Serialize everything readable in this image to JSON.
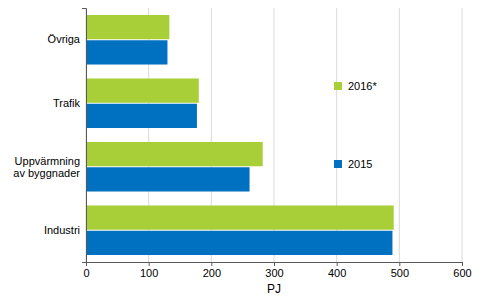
{
  "chart_data": {
    "type": "bar",
    "orientation": "horizontal",
    "categories": [
      "Övriga",
      "Trafik",
      "Uppvärmning av byggnader",
      "Industri"
    ],
    "series": [
      {
        "name": "2016*",
        "color": "#a8cf38",
        "values": [
          133,
          180,
          282,
          491
        ]
      },
      {
        "name": "2015",
        "color": "#0070c0",
        "values": [
          130,
          177,
          261,
          489
        ]
      }
    ],
    "x_label": "PJ",
    "xlim": [
      0,
      600
    ],
    "xticks": [
      0,
      100,
      200,
      300,
      400,
      500,
      600
    ],
    "grid": true,
    "legend": "right"
  }
}
